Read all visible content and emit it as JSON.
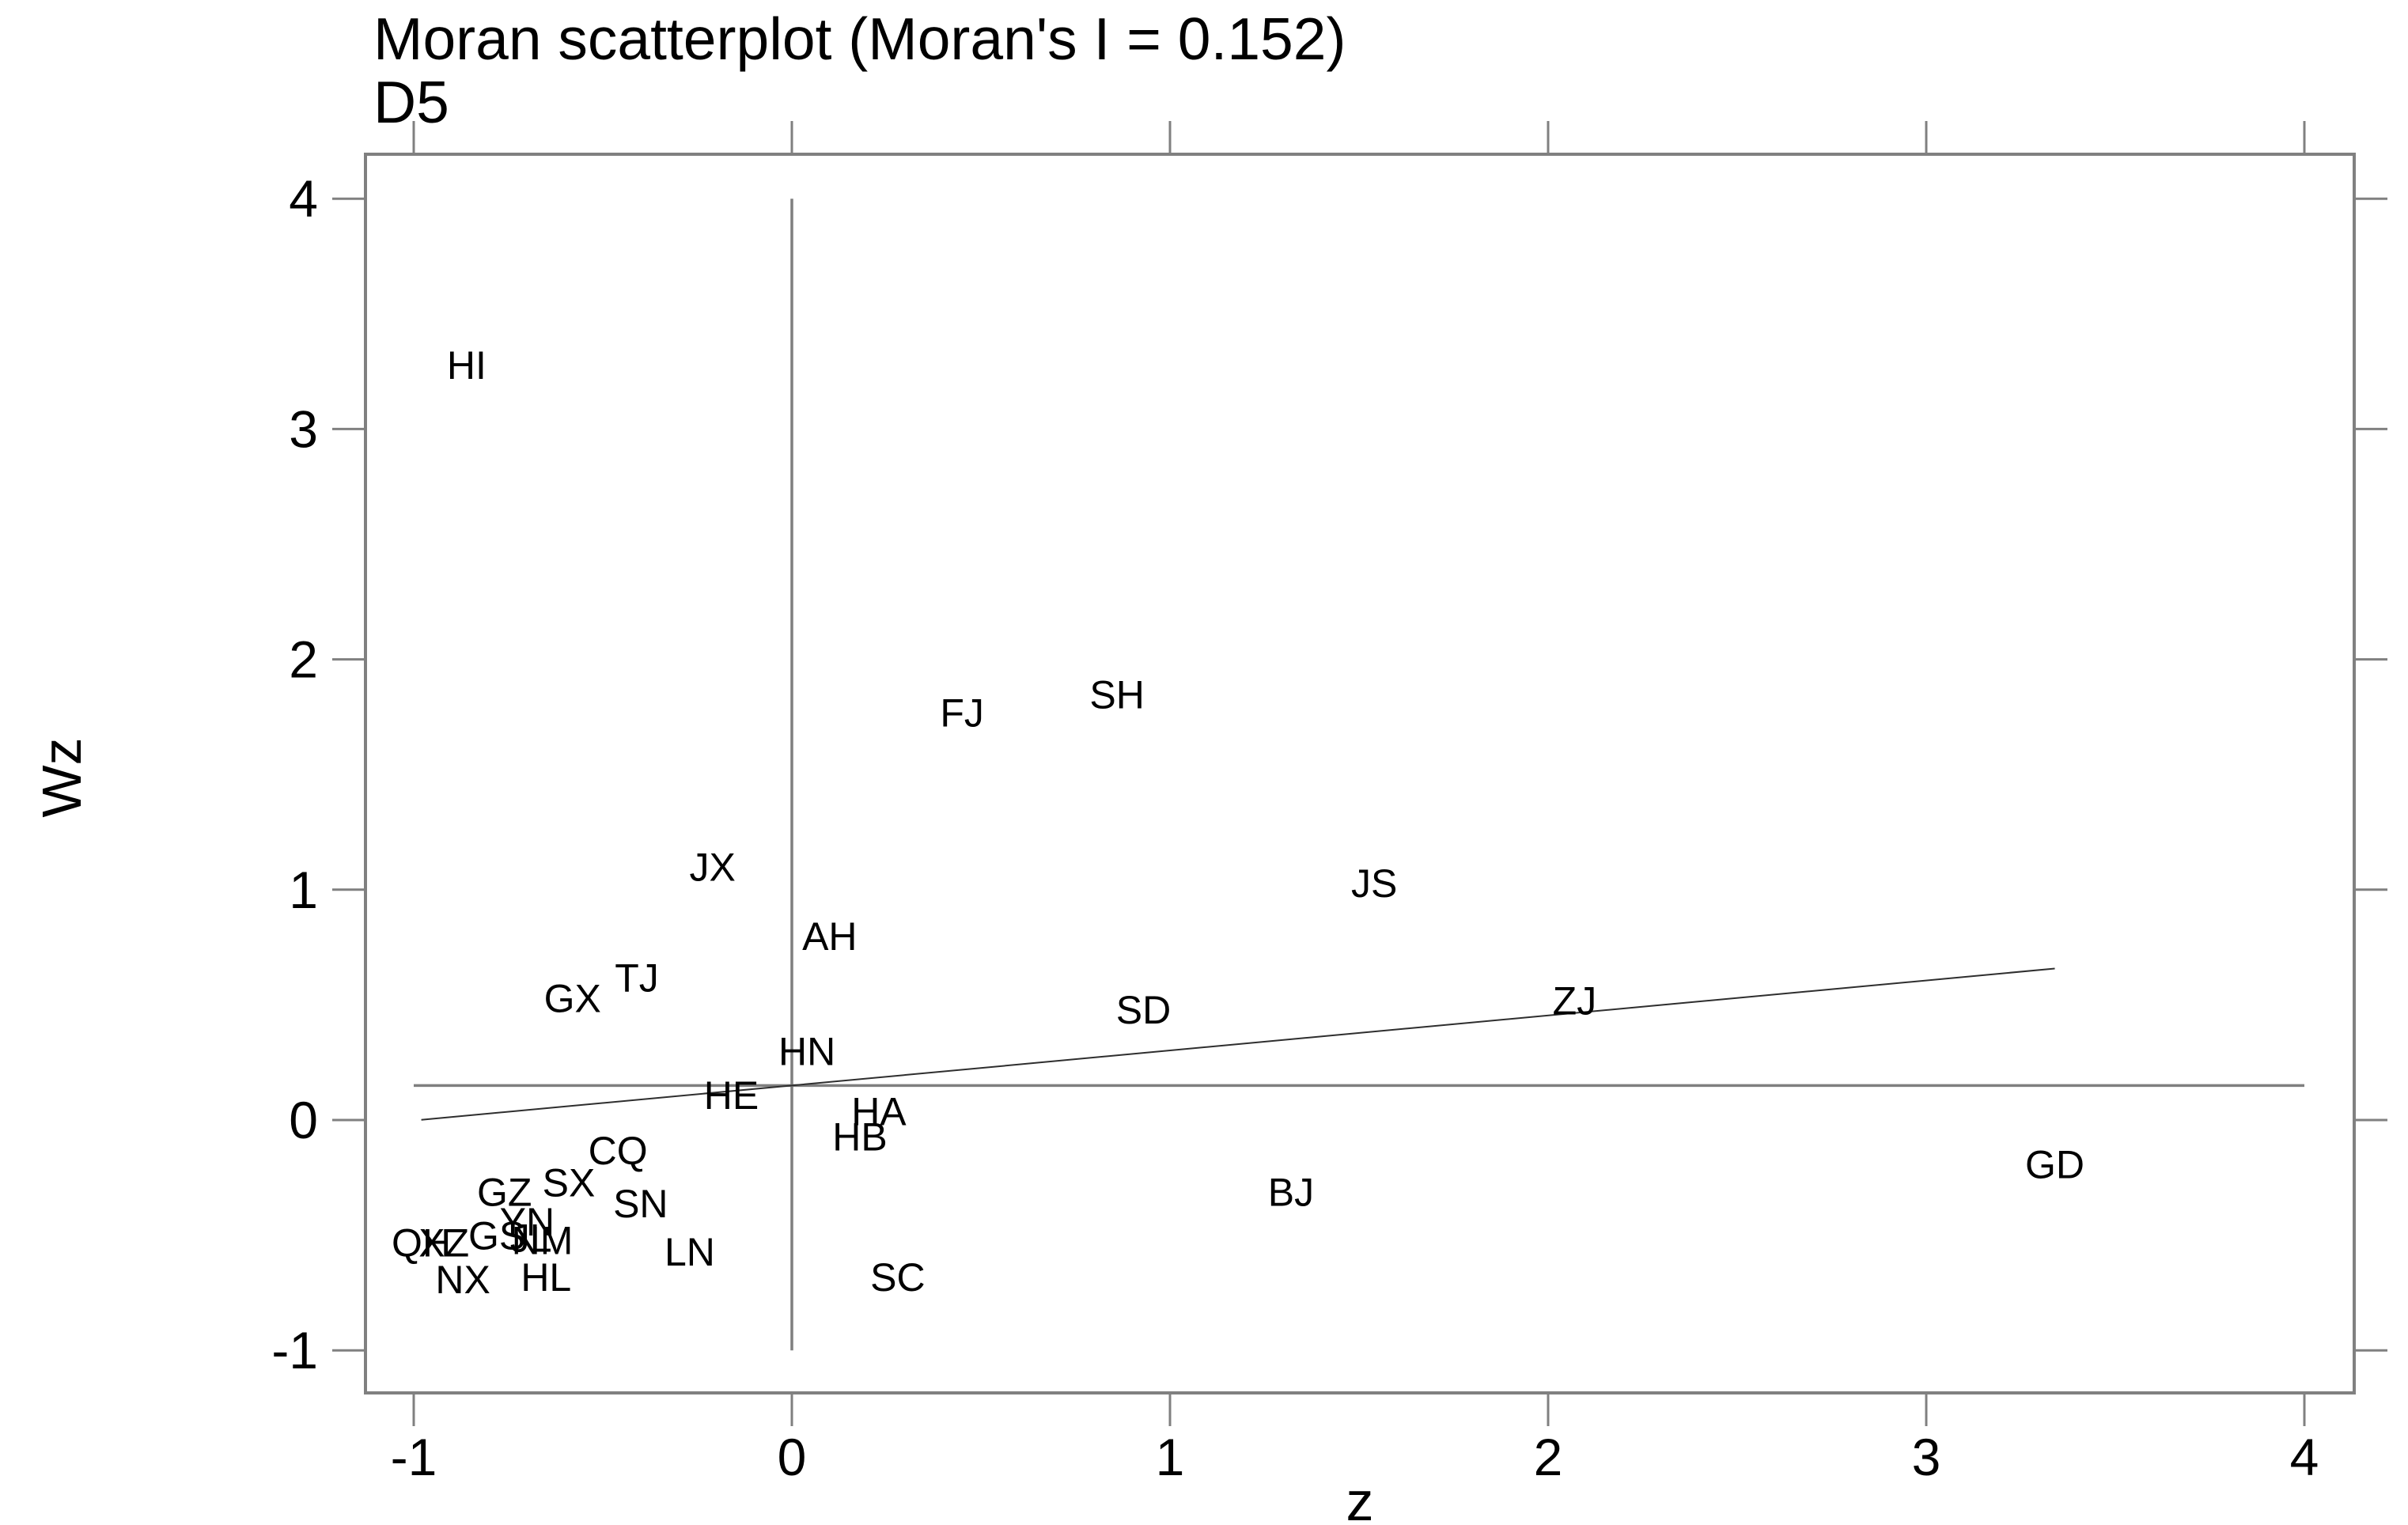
{
  "title": "Moran scatterplot (Moran's I = 0.152)",
  "subtitle": "D5",
  "axes": {
    "x_title": "z",
    "y_title": "Wz"
  },
  "colors": {
    "background": "#ffffff",
    "frame": "#808080",
    "tick": "#808080",
    "mean_line": "#7f7f7f",
    "regression_line": "#2e2e2e",
    "text": "#000000"
  },
  "chart_data": {
    "type": "scatter",
    "marker": "text-label",
    "title": "Moran scatterplot (Moran's I = 0.152)",
    "subtitle": "D5",
    "xlabel": "z",
    "ylabel": "Wz",
    "moran_i": 0.152,
    "grid": false,
    "xlim": [
      -1.13,
      4.13
    ],
    "ylim": [
      -1.18,
      4.19
    ],
    "x_ticks": [
      -1,
      0,
      1,
      2,
      3,
      4
    ],
    "y_ticks": [
      4,
      3,
      2,
      1,
      0,
      -1
    ],
    "reference_lines": {
      "vertical_mean": {
        "z": 0,
        "wz_from": -1.0,
        "wz_to": 4.0
      },
      "horizontal_mean": {
        "wz": 0.15,
        "z_from": -1.0,
        "z_to": 4.0
      },
      "regression": {
        "intercept": 0.15,
        "slope": 0.152,
        "z_from": -0.98,
        "z_to": 3.34
      }
    },
    "points": [
      {
        "label": "HI",
        "z": -0.86,
        "wz": 3.28
      },
      {
        "label": "FJ",
        "z": 0.45,
        "wz": 1.77
      },
      {
        "label": "SH",
        "z": 0.86,
        "wz": 1.85
      },
      {
        "label": "JX",
        "z": -0.21,
        "wz": 1.1
      },
      {
        "label": "JS",
        "z": 1.54,
        "wz": 1.03
      },
      {
        "label": "AH",
        "z": 0.1,
        "wz": 0.8
      },
      {
        "label": "TJ",
        "z": -0.41,
        "wz": 0.62
      },
      {
        "label": "GX",
        "z": -0.58,
        "wz": 0.53
      },
      {
        "label": "ZJ",
        "z": 2.07,
        "wz": 0.52
      },
      {
        "label": "SD",
        "z": 0.93,
        "wz": 0.48
      },
      {
        "label": "HN",
        "z": 0.04,
        "wz": 0.3
      },
      {
        "label": "HE",
        "z": -0.16,
        "wz": 0.11
      },
      {
        "label": "HA",
        "z": 0.23,
        "wz": 0.04
      },
      {
        "label": "HB",
        "z": 0.18,
        "wz": -0.07
      },
      {
        "label": "CQ",
        "z": -0.46,
        "wz": -0.13
      },
      {
        "label": "SX",
        "z": -0.59,
        "wz": -0.27
      },
      {
        "label": "GZ",
        "z": -0.76,
        "wz": -0.31
      },
      {
        "label": "SN",
        "z": -0.4,
        "wz": -0.36
      },
      {
        "label": "BJ",
        "z": 1.32,
        "wz": -0.31
      },
      {
        "label": "GD",
        "z": 3.34,
        "wz": -0.19
      },
      {
        "label": "QH",
        "z": -0.98,
        "wz": -0.53
      },
      {
        "label": "XZ",
        "z": -0.92,
        "wz": -0.53
      },
      {
        "label": "GS",
        "z": -0.78,
        "wz": -0.5
      },
      {
        "label": "YN",
        "z": -0.7,
        "wz": -0.44
      },
      {
        "label": "JL",
        "z": -0.69,
        "wz": -0.51
      },
      {
        "label": "NM",
        "z": -0.66,
        "wz": -0.52
      },
      {
        "label": "NX",
        "z": -0.87,
        "wz": -0.69
      },
      {
        "label": "HL",
        "z": -0.65,
        "wz": -0.68
      },
      {
        "label": "LN",
        "z": -0.27,
        "wz": -0.57
      },
      {
        "label": "SC",
        "z": 0.28,
        "wz": -0.68
      }
    ]
  }
}
